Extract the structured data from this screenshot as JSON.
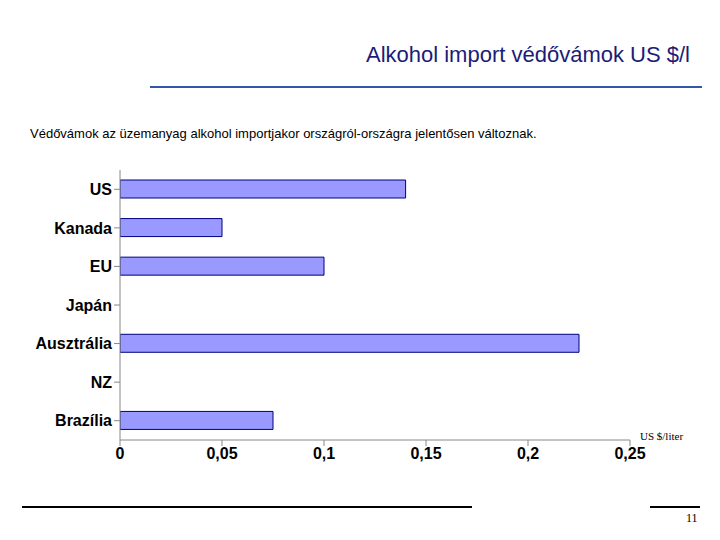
{
  "chart_data": {
    "type": "bar",
    "title": "Alkohol import védővámok US $/l",
    "subtitle": "Védővámok az üzemanyag alkohol importjakor országról-országra jelentősen változnak.",
    "x_label": "US $/liter",
    "orientation": "horizontal",
    "categories": [
      "US",
      "Kanada",
      "EU",
      "Japán",
      "Ausztrália",
      "NZ",
      "Brazília"
    ],
    "values": [
      0.14,
      0.05,
      0.1,
      0,
      0.225,
      0,
      0.075
    ],
    "color": "#9999ff",
    "xlim": [
      0,
      0.25
    ],
    "xticks": [
      0,
      {
        "value": 0.05,
        "label": "0,05"
      },
      {
        "value": 0.1,
        "label": "0,1"
      },
      {
        "value": 0.15,
        "label": "0,15"
      },
      {
        "value": 0.2,
        "label": "0,2"
      },
      {
        "value": 0.25,
        "label": "0,25"
      }
    ],
    "grid": false
  },
  "page": {
    "number": "11"
  }
}
